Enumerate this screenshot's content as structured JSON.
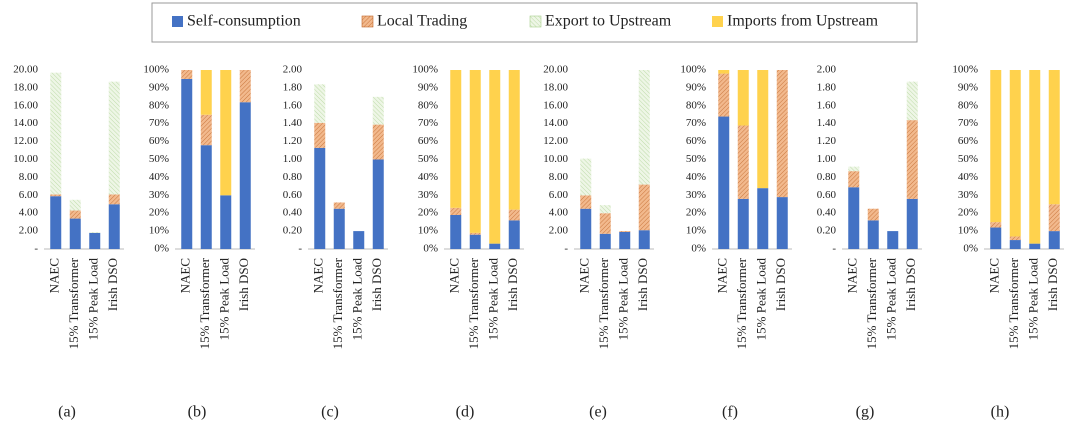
{
  "legend": [
    {
      "name": "Self-consumption",
      "color": "#4472c4"
    },
    {
      "name": "Local Trading",
      "color": "#f2b98d"
    },
    {
      "name": "Export to Upstream",
      "color": "#eef6e6"
    },
    {
      "name": "Imports from Upstream",
      "color": "#ffd24d"
    }
  ],
  "chart_data": [
    {
      "type": "bar",
      "stacked": true,
      "caption": "(a)",
      "categories": [
        "NAEC",
        "15% Transformer",
        "15% Peak Load",
        "Irish DSO"
      ],
      "series": [
        {
          "values": [
            5.9,
            3.4,
            1.8,
            5.0
          ]
        },
        {
          "values": [
            0.2,
            0.9,
            0,
            1.1
          ]
        },
        {
          "values": [
            13.6,
            1.2,
            0.1,
            12.6
          ]
        },
        {
          "values": [
            0,
            0,
            0,
            0
          ]
        }
      ],
      "ylim": [
        0,
        20
      ],
      "yticks": [
        {
          "value": 0,
          "label": "-"
        },
        {
          "value": 2,
          "label": "2.00"
        },
        {
          "value": 4,
          "label": "4.00"
        },
        {
          "value": 6,
          "label": "6.00"
        },
        {
          "value": 8,
          "label": "8.00"
        },
        {
          "value": 10,
          "label": "10.00"
        },
        {
          "value": 12,
          "label": "12.00"
        },
        {
          "value": 14,
          "label": "14.00"
        },
        {
          "value": 16,
          "label": "16.00"
        },
        {
          "value": 18,
          "label": "18.00"
        },
        {
          "value": 20,
          "label": "20.00"
        }
      ]
    },
    {
      "type": "bar",
      "stacked": true,
      "caption": "(b)",
      "categories": [
        "NAEC",
        "15% Transformer",
        "15% Peak Load",
        "Irish DSO"
      ],
      "series": [
        {
          "values": [
            95,
            58,
            30,
            82
          ]
        },
        {
          "values": [
            5,
            17,
            0,
            18
          ]
        },
        {
          "values": [
            0,
            0,
            0,
            0
          ]
        },
        {
          "values": [
            0,
            25,
            70,
            0
          ]
        }
      ],
      "ylim": [
        0,
        100
      ],
      "yticks": [
        {
          "value": 0,
          "label": "0%"
        },
        {
          "value": 10,
          "label": "10%"
        },
        {
          "value": 20,
          "label": "20%"
        },
        {
          "value": 30,
          "label": "30%"
        },
        {
          "value": 40,
          "label": "40%"
        },
        {
          "value": 50,
          "label": "50%"
        },
        {
          "value": 60,
          "label": "60%"
        },
        {
          "value": 70,
          "label": "70%"
        },
        {
          "value": 80,
          "label": "80%"
        },
        {
          "value": 90,
          "label": "90%"
        },
        {
          "value": 100,
          "label": "100%"
        }
      ]
    },
    {
      "type": "bar",
      "stacked": true,
      "caption": "(c)",
      "categories": [
        "NAEC",
        "15% Transformer",
        "15% Peak Load",
        "Irish DSO"
      ],
      "series": [
        {
          "values": [
            1.13,
            0.45,
            0.2,
            1.0
          ]
        },
        {
          "values": [
            0.28,
            0.07,
            0,
            0.39
          ]
        },
        {
          "values": [
            0.43,
            0,
            0,
            0.31
          ]
        },
        {
          "values": [
            0,
            0,
            0,
            0
          ]
        }
      ],
      "ylim": [
        0,
        2
      ],
      "yticks": [
        {
          "value": 0,
          "label": "-"
        },
        {
          "value": 0.2,
          "label": "0.20"
        },
        {
          "value": 0.4,
          "label": "0.40"
        },
        {
          "value": 0.6,
          "label": "0.60"
        },
        {
          "value": 0.8,
          "label": "0.80"
        },
        {
          "value": 1,
          "label": "1.00"
        },
        {
          "value": 1.2,
          "label": "1.20"
        },
        {
          "value": 1.4,
          "label": "1.40"
        },
        {
          "value": 1.6,
          "label": "1.60"
        },
        {
          "value": 1.8,
          "label": "1.80"
        },
        {
          "value": 2,
          "label": "2.00"
        }
      ]
    },
    {
      "type": "bar",
      "stacked": true,
      "caption": "(d)",
      "categories": [
        "NAEC",
        "15% Transformer",
        "15% Peak Load",
        "Irish DSO"
      ],
      "series": [
        {
          "values": [
            19,
            8,
            3,
            16
          ]
        },
        {
          "values": [
            4,
            1,
            0,
            6
          ]
        },
        {
          "values": [
            0,
            0,
            0,
            0
          ]
        },
        {
          "values": [
            77,
            91,
            97,
            78
          ]
        }
      ],
      "ylim": [
        0,
        100
      ],
      "yticks": [
        {
          "value": 0,
          "label": "0%"
        },
        {
          "value": 10,
          "label": "10%"
        },
        {
          "value": 20,
          "label": "20%"
        },
        {
          "value": 30,
          "label": "30%"
        },
        {
          "value": 40,
          "label": "40%"
        },
        {
          "value": 50,
          "label": "50%"
        },
        {
          "value": 60,
          "label": "60%"
        },
        {
          "value": 70,
          "label": "70%"
        },
        {
          "value": 80,
          "label": "80%"
        },
        {
          "value": 90,
          "label": "90%"
        },
        {
          "value": 100,
          "label": "100%"
        }
      ]
    },
    {
      "type": "bar",
      "stacked": true,
      "caption": "(e)",
      "categories": [
        "NAEC",
        "15% Transformer",
        "15% Peak Load",
        "Irish DSO"
      ],
      "series": [
        {
          "values": [
            4.5,
            1.7,
            1.9,
            2.1
          ]
        },
        {
          "values": [
            1.5,
            2.3,
            0.1,
            5.1
          ]
        },
        {
          "values": [
            4.1,
            0.9,
            0,
            12.8
          ]
        },
        {
          "values": [
            0,
            0,
            0,
            0
          ]
        }
      ],
      "ylim": [
        0,
        20
      ],
      "yticks": [
        {
          "value": 0,
          "label": "-"
        },
        {
          "value": 2,
          "label": "2.00"
        },
        {
          "value": 4,
          "label": "4.00"
        },
        {
          "value": 6,
          "label": "6.00"
        },
        {
          "value": 8,
          "label": "8.00"
        },
        {
          "value": 10,
          "label": "10.00"
        },
        {
          "value": 12,
          "label": "12.00"
        },
        {
          "value": 14,
          "label": "14.00"
        },
        {
          "value": 16,
          "label": "16.00"
        },
        {
          "value": 18,
          "label": "18.00"
        },
        {
          "value": 20,
          "label": "20.00"
        }
      ]
    },
    {
      "type": "bar",
      "stacked": true,
      "caption": "(f)",
      "categories": [
        "NAEC",
        "15% Transformer",
        "15% Peak Load",
        "Irish DSO"
      ],
      "series": [
        {
          "values": [
            74,
            28,
            34,
            29
          ]
        },
        {
          "values": [
            24,
            41,
            0,
            71
          ]
        },
        {
          "values": [
            0,
            0,
            0,
            0
          ]
        },
        {
          "values": [
            2,
            31,
            66,
            0
          ]
        }
      ],
      "ylim": [
        0,
        100
      ],
      "yticks": [
        {
          "value": 0,
          "label": "0%"
        },
        {
          "value": 10,
          "label": "10%"
        },
        {
          "value": 20,
          "label": "20%"
        },
        {
          "value": 30,
          "label": "30%"
        },
        {
          "value": 40,
          "label": "40%"
        },
        {
          "value": 50,
          "label": "50%"
        },
        {
          "value": 60,
          "label": "60%"
        },
        {
          "value": 70,
          "label": "70%"
        },
        {
          "value": 80,
          "label": "80%"
        },
        {
          "value": 90,
          "label": "90%"
        },
        {
          "value": 100,
          "label": "100%"
        }
      ]
    },
    {
      "type": "bar",
      "stacked": true,
      "caption": "(g)",
      "categories": [
        "NAEC",
        "15% Transformer",
        "15% Peak Load",
        "Irish DSO"
      ],
      "series": [
        {
          "values": [
            0.69,
            0.32,
            0.2,
            0.56
          ]
        },
        {
          "values": [
            0.18,
            0.13,
            0,
            0.88
          ]
        },
        {
          "values": [
            0.05,
            0,
            0,
            0.43
          ]
        },
        {
          "values": [
            0,
            0,
            0,
            0
          ]
        }
      ],
      "ylim": [
        0,
        2
      ],
      "yticks": [
        {
          "value": 0,
          "label": "-"
        },
        {
          "value": 0.2,
          "label": "0.20"
        },
        {
          "value": 0.4,
          "label": "0.40"
        },
        {
          "value": 0.6,
          "label": "0.60"
        },
        {
          "value": 0.8,
          "label": "0.80"
        },
        {
          "value": 1,
          "label": "1.00"
        },
        {
          "value": 1.2,
          "label": "1.20"
        },
        {
          "value": 1.4,
          "label": "1.40"
        },
        {
          "value": 1.6,
          "label": "1.60"
        },
        {
          "value": 1.8,
          "label": "1.80"
        },
        {
          "value": 2,
          "label": "2.00"
        }
      ]
    },
    {
      "type": "bar",
      "stacked": true,
      "caption": "(h)",
      "categories": [
        "NAEC",
        "15% Transformer",
        "15% Peak Load",
        "Irish DSO"
      ],
      "series": [
        {
          "values": [
            12,
            5,
            3,
            10
          ]
        },
        {
          "values": [
            3,
            2,
            0,
            15
          ]
        },
        {
          "values": [
            0,
            0,
            0,
            0
          ]
        },
        {
          "values": [
            85,
            93,
            97,
            75
          ]
        }
      ],
      "ylim": [
        0,
        100
      ],
      "yticks": [
        {
          "value": 0,
          "label": "0%"
        },
        {
          "value": 10,
          "label": "10%"
        },
        {
          "value": 20,
          "label": "20%"
        },
        {
          "value": 30,
          "label": "30%"
        },
        {
          "value": 40,
          "label": "40%"
        },
        {
          "value": 50,
          "label": "50%"
        },
        {
          "value": 60,
          "label": "60%"
        },
        {
          "value": 70,
          "label": "70%"
        },
        {
          "value": 80,
          "label": "80%"
        },
        {
          "value": 90,
          "label": "90%"
        },
        {
          "value": 100,
          "label": "100%"
        }
      ]
    }
  ]
}
